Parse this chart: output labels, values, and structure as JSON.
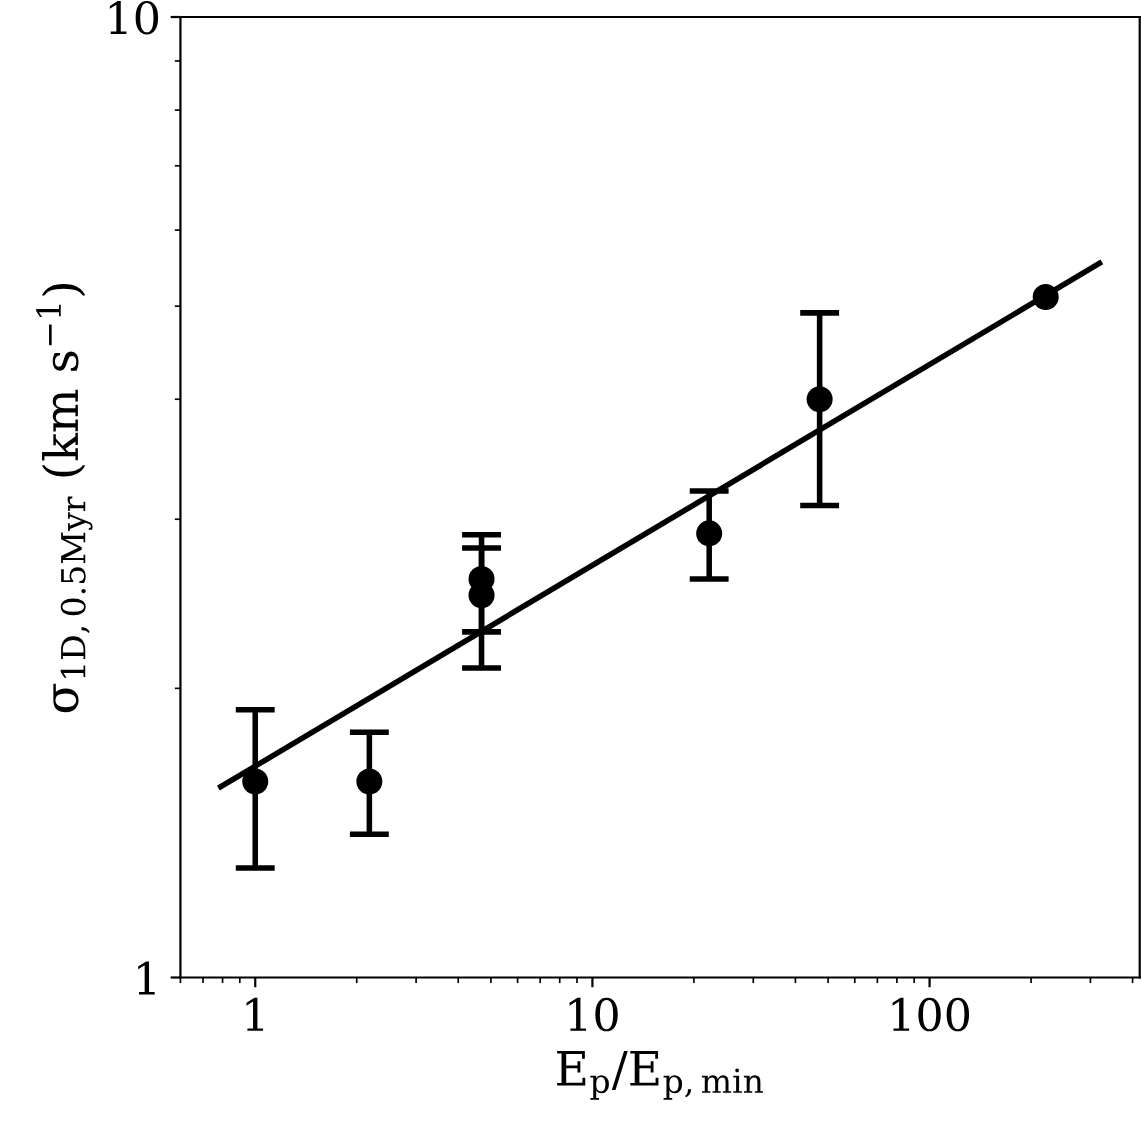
{
  "chart_data": {
    "type": "scatter",
    "xlabel": "E$_{p}$/E$_{p,min}$",
    "ylabel": "σ$_{1D,0.5Myr}$ (km s$^{−1}$)",
    "log": "xy",
    "xlim": [
      0.6,
      420
    ],
    "ylim": [
      1,
      10
    ],
    "xticks": [
      1,
      10,
      100
    ],
    "yticks": [
      1,
      10
    ],
    "grid": false,
    "series": [
      {
        "color": "#000000",
        "marker": "circle",
        "x": [
          1.0,
          2.18,
          4.69,
          4.69,
          22.2,
          47.2,
          221
        ],
        "values": [
          1.6,
          1.6,
          2.6,
          2.5,
          2.9,
          4.0,
          5.11
        ],
        "errors": [
          [
            1.3,
            1.9
          ],
          [
            1.41,
            1.8
          ],
          [
            2.29,
            2.89
          ],
          [
            2.1,
            2.8
          ],
          [
            2.6,
            3.21
          ],
          [
            3.1,
            4.92
          ],
          null
        ]
      },
      {
        "type": "line",
        "color": "#000000",
        "line_style": "solid",
        "x": [
          0.79,
          319
        ],
        "values": [
          1.58,
          5.54
        ]
      }
    ]
  }
}
